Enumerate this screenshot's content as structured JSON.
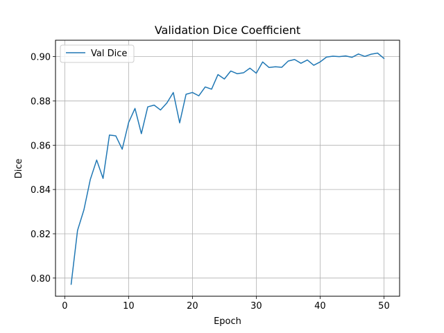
{
  "chart_data": {
    "type": "line",
    "title": "Validation Dice Coefficient",
    "xlabel": "Epoch",
    "ylabel": "Dice",
    "xlim": [
      -1.45,
      52.45
    ],
    "ylim": [
      0.7918,
      0.9074
    ],
    "xticks": [
      0,
      10,
      20,
      30,
      40,
      50
    ],
    "xtick_labels": [
      "0",
      "10",
      "20",
      "30",
      "40",
      "50"
    ],
    "yticks": [
      0.8,
      0.82,
      0.84,
      0.86,
      0.88,
      0.9
    ],
    "ytick_labels": [
      "0.80",
      "0.82",
      "0.84",
      "0.86",
      "0.88",
      "0.90"
    ],
    "grid": true,
    "legend": {
      "position": "top-left",
      "entries": [
        "Val Dice"
      ]
    },
    "series": [
      {
        "name": "Val Dice",
        "color": "#1f77b4",
        "x": [
          1,
          2,
          3,
          4,
          5,
          6,
          7,
          8,
          9,
          10,
          11,
          12,
          13,
          14,
          15,
          16,
          17,
          18,
          19,
          20,
          21,
          22,
          23,
          24,
          25,
          26,
          27,
          28,
          29,
          30,
          31,
          32,
          33,
          34,
          35,
          36,
          37,
          38,
          39,
          40,
          41,
          42,
          43,
          44,
          45,
          46,
          47,
          48,
          49,
          50
        ],
        "values": [
          0.7972,
          0.8215,
          0.8308,
          0.8445,
          0.8533,
          0.845,
          0.8646,
          0.8642,
          0.8582,
          0.8702,
          0.8766,
          0.8652,
          0.8773,
          0.8781,
          0.8759,
          0.8791,
          0.8838,
          0.8701,
          0.883,
          0.8838,
          0.8823,
          0.8863,
          0.8853,
          0.8919,
          0.8899,
          0.8935,
          0.8923,
          0.8927,
          0.8948,
          0.8925,
          0.8976,
          0.8951,
          0.8954,
          0.8952,
          0.898,
          0.8987,
          0.897,
          0.8985,
          0.8961,
          0.8976,
          0.8998,
          0.9002,
          0.9,
          0.9003,
          0.8997,
          0.9012,
          0.9001,
          0.9011,
          0.9016,
          0.8992
        ]
      }
    ]
  }
}
